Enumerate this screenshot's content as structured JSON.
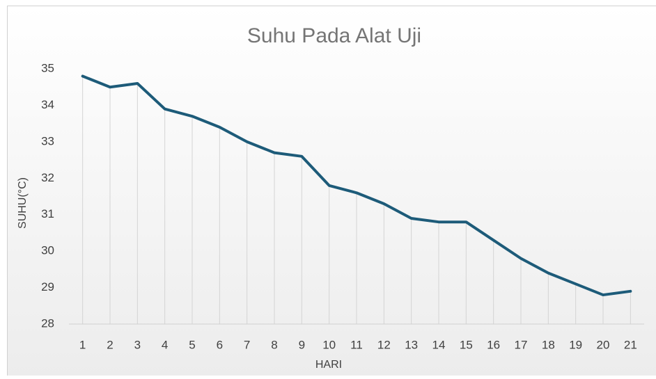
{
  "chart_data": {
    "type": "line",
    "title": "Suhu Pada Alat Uji",
    "x_label": "HARI",
    "y_label": "SUHU(°C)",
    "categories": [
      "1",
      "2",
      "3",
      "4",
      "5",
      "6",
      "7",
      "8",
      "9",
      "10",
      "11",
      "12",
      "13",
      "14",
      "15",
      "16",
      "17",
      "18",
      "19",
      "20",
      "21"
    ],
    "values": [
      34.8,
      34.5,
      34.6,
      33.9,
      33.7,
      33.4,
      33.0,
      32.7,
      32.6,
      31.8,
      31.6,
      31.3,
      30.9,
      30.8,
      30.8,
      30.3,
      29.8,
      29.4,
      29.1,
      28.8,
      28.9
    ],
    "color": "#1d5b79",
    "ylim": [
      28,
      35
    ],
    "yticks": [
      28,
      29,
      30,
      31,
      32,
      33,
      34,
      35
    ],
    "drop_lines": true,
    "grid": false
  }
}
